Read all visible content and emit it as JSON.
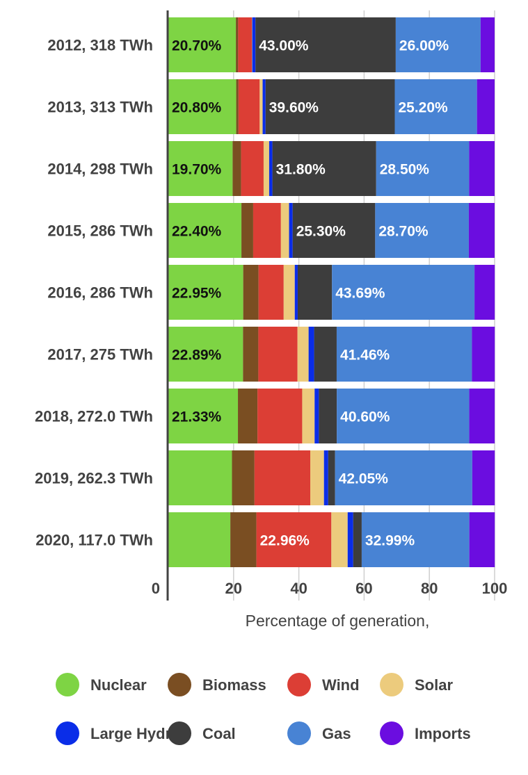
{
  "chart_data": {
    "type": "bar",
    "orientation": "horizontal",
    "stacked": true,
    "title": "",
    "xlabel": "Percentage of generation,",
    "ylabel": "",
    "xlim": [
      0,
      100
    ],
    "x_ticks": [
      0,
      20,
      40,
      60,
      80,
      100
    ],
    "grid": true,
    "legend_position": "bottom",
    "categories": [
      "2012, 318 TWh",
      "2013, 313 TWh",
      "2014, 298 TWh",
      "2015, 286 TWh",
      "2016, 286 TWh",
      "2017, 275 TWh",
      "2018, 272.0 TWh",
      "2019, 262.3 TWh",
      "2020, 117.0 TWh"
    ],
    "series": [
      {
        "name": "Nuclear",
        "color": "#7ed444",
        "label_color": "#111111",
        "values": [
          20.7,
          20.8,
          19.7,
          22.4,
          22.95,
          22.89,
          21.33,
          19.5,
          19.0
        ],
        "labels": [
          "20.70%",
          "20.80%",
          "19.70%",
          "22.40%",
          "22.95%",
          "22.89%",
          "21.33%",
          "",
          ""
        ]
      },
      {
        "name": "Biomass",
        "color": "#7a4e22",
        "label_color": "#ffffff",
        "values": [
          0.7,
          0.7,
          2.6,
          3.6,
          4.7,
          4.7,
          6.0,
          6.9,
          8.0
        ],
        "labels": [
          "",
          "",
          "",
          "",
          "",
          "",
          "",
          "",
          ""
        ]
      },
      {
        "name": "Wind",
        "color": "#dc3e35",
        "label_color": "#ffffff",
        "values": [
          4.2,
          6.5,
          6.9,
          8.5,
          7.7,
          12.0,
          13.7,
          17.1,
          22.96
        ],
        "labels": [
          "",
          "",
          "",
          "",
          "",
          "",
          "",
          "",
          "22.96%"
        ]
      },
      {
        "name": "Solar",
        "color": "#eccb7d",
        "label_color": "#ffffff",
        "values": [
          0.1,
          0.9,
          1.7,
          2.5,
          3.4,
          3.4,
          3.8,
          4.2,
          5.0
        ],
        "labels": [
          "",
          "",
          "",
          "",
          "",
          "",
          "",
          "",
          ""
        ]
      },
      {
        "name": "Large Hydro",
        "color": "#0a2de8",
        "label_color": "#ffffff",
        "values": [
          1.0,
          0.9,
          1.0,
          1.1,
          0.9,
          1.7,
          1.3,
          1.3,
          1.7
        ],
        "labels": [
          "",
          "",
          "",
          "",
          "",
          "",
          "",
          "",
          ""
        ]
      },
      {
        "name": "Coal",
        "color": "#3d3d3d",
        "label_color": "#ffffff",
        "values": [
          43.0,
          39.6,
          31.8,
          25.3,
          10.5,
          6.9,
          5.5,
          2.1,
          2.6
        ],
        "labels": [
          "43.00%",
          "39.60%",
          "31.80%",
          "25.30%",
          "",
          "",
          "",
          "",
          ""
        ]
      },
      {
        "name": "Gas",
        "color": "#4883d4",
        "label_color": "#ffffff",
        "values": [
          26.0,
          25.2,
          28.5,
          28.7,
          43.69,
          41.46,
          40.6,
          42.05,
          32.99
        ],
        "labels": [
          "26.00%",
          "25.20%",
          "28.50%",
          "28.70%",
          "43.69%",
          "41.46%",
          "40.60%",
          "42.05%",
          "32.99%"
        ]
      },
      {
        "name": "Imports",
        "color": "#6b0de0",
        "label_color": "#ffffff",
        "values": [
          4.3,
          5.4,
          7.8,
          7.9,
          6.2,
          7.0,
          7.8,
          6.9,
          7.8
        ],
        "labels": [
          "",
          "",
          "",
          "",
          "",
          "",
          "",
          "",
          ""
        ]
      }
    ]
  }
}
